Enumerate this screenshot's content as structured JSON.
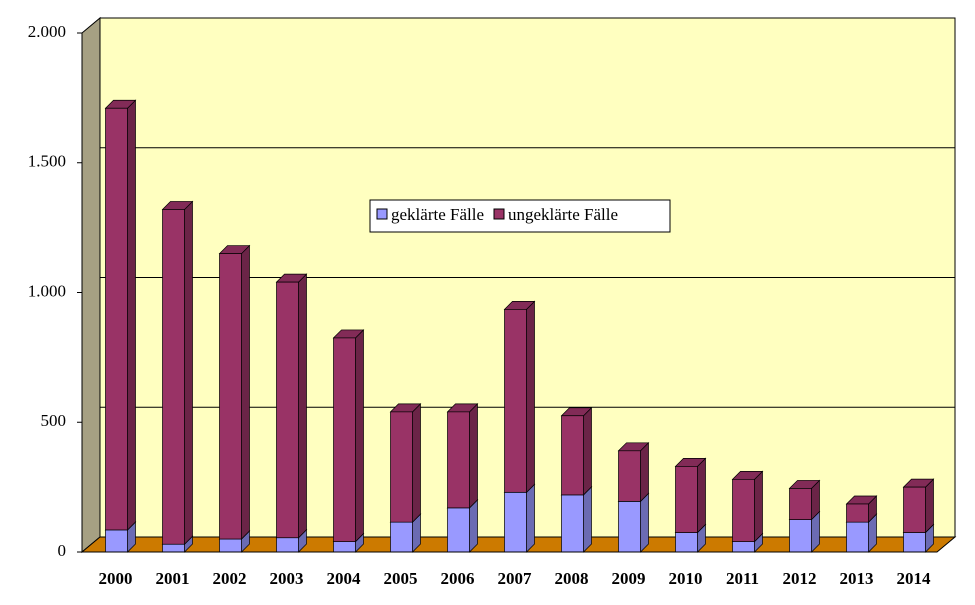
{
  "chart_data": {
    "type": "bar3d_stacked",
    "categories": [
      "2000",
      "2001",
      "2002",
      "2003",
      "2004",
      "2005",
      "2006",
      "2007",
      "2008",
      "2009",
      "2010",
      "2011",
      "2012",
      "2013",
      "2014"
    ],
    "series": [
      {
        "name": "geklärte Fälle",
        "color": "#9999ff",
        "values": [
          85,
          30,
          50,
          55,
          40,
          115,
          170,
          230,
          220,
          195,
          75,
          40,
          125,
          115,
          75
        ]
      },
      {
        "name": "ungeklärte Fälle",
        "color": "#993366",
        "values": [
          1625,
          1290,
          1100,
          985,
          785,
          425,
          370,
          705,
          305,
          195,
          255,
          240,
          120,
          70,
          175
        ]
      }
    ],
    "ylim": [
      0,
      2000
    ],
    "yticks": [
      0,
      500,
      {
        "value": 1000,
        "label": "1.000"
      },
      {
        "value": 1500,
        "label": "1.500"
      },
      {
        "value": 2000,
        "label": "2.000"
      }
    ],
    "grid": true
  }
}
